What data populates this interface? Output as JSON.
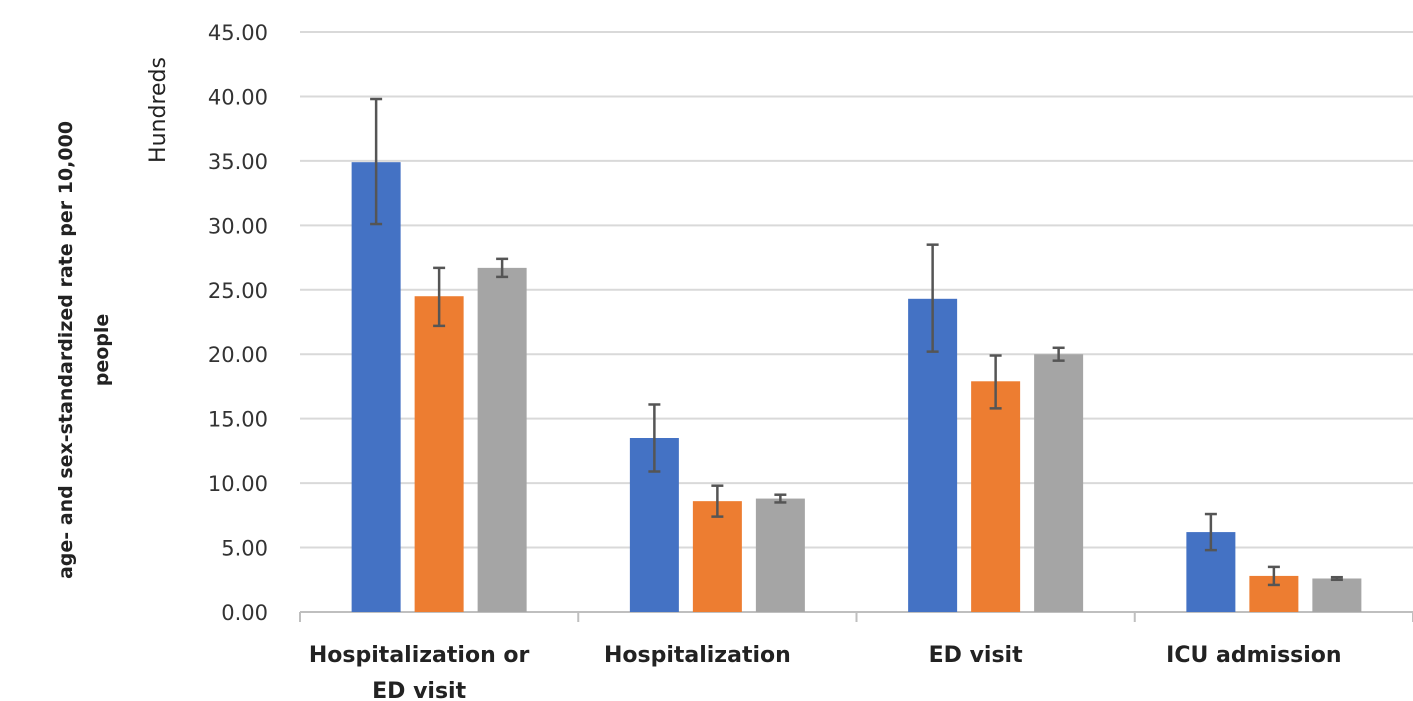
{
  "chart_data": {
    "type": "bar",
    "title": "",
    "ylabel_lines": [
      "age- and sex-standardized rate per 10,000",
      "people"
    ],
    "display_units_label": "Hundreds",
    "xlabel": "",
    "ylim": [
      0,
      45
    ],
    "yticks": [
      "0.00",
      "5.00",
      "10.00",
      "15.00",
      "20.00",
      "25.00",
      "30.00",
      "35.00",
      "40.00",
      "45.00"
    ],
    "ytick_values": [
      0,
      5,
      10,
      15,
      20,
      25,
      30,
      35,
      40,
      45
    ],
    "categories": [
      [
        "Hospitalization or",
        "ED visit"
      ],
      [
        "Hospitalization"
      ],
      [
        "ED visit"
      ],
      [
        "ICU admission"
      ]
    ],
    "grid": true,
    "legend": "none",
    "series": [
      {
        "color": "#4472C4",
        "values": [
          34.9,
          13.5,
          24.3,
          6.2
        ],
        "error_low": [
          30.1,
          10.9,
          20.2,
          4.8
        ],
        "error_high": [
          39.8,
          16.1,
          28.5,
          7.6
        ]
      },
      {
        "color": "#ED7D31",
        "values": [
          24.5,
          8.6,
          17.9,
          2.8
        ],
        "error_low": [
          22.2,
          7.4,
          15.8,
          2.1
        ],
        "error_high": [
          26.7,
          9.8,
          19.9,
          3.5
        ]
      },
      {
        "color": "#A5A5A5",
        "values": [
          26.7,
          8.8,
          20.0,
          2.6
        ],
        "error_low": [
          26.0,
          8.5,
          19.5,
          2.5
        ],
        "error_high": [
          27.4,
          9.1,
          20.5,
          2.7
        ]
      }
    ]
  }
}
